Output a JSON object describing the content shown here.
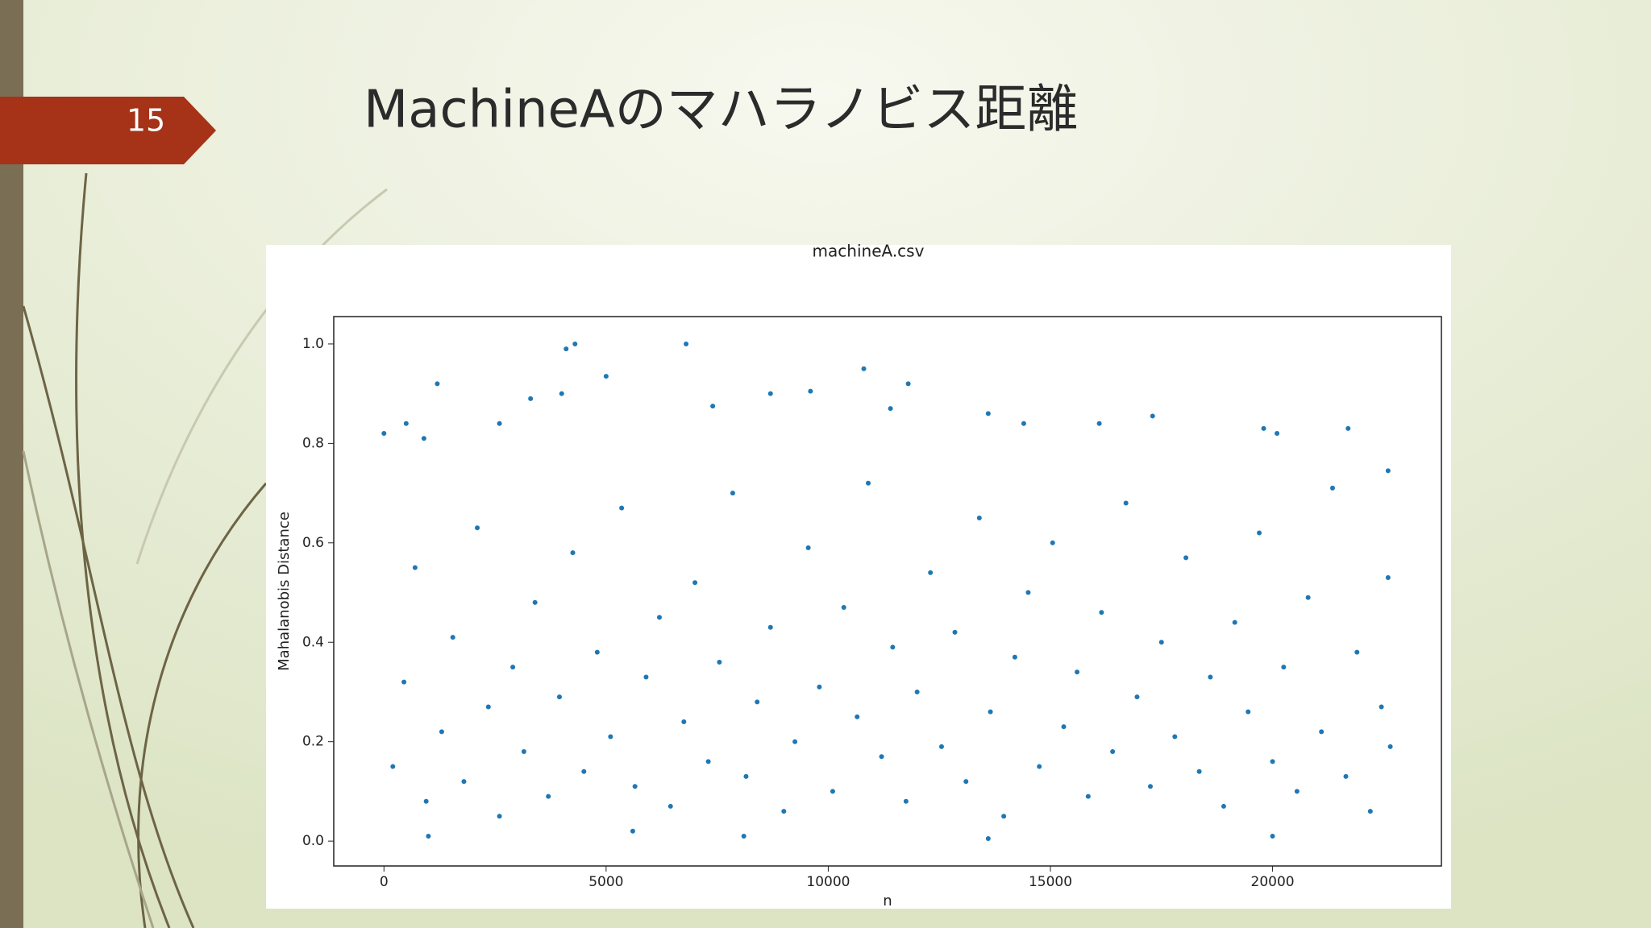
{
  "slide": {
    "number": 15,
    "title": "MachineAのマハラノビス距離"
  },
  "chart_data": {
    "type": "scatter",
    "title": "machineA.csv",
    "x_label": "n",
    "y_label": "Mahalanobis Distance",
    "color": "#1f77b4",
    "x": [
      4300,
      4100,
      6800,
      10800,
      5000,
      1200,
      9600,
      11800,
      4000,
      3300,
      8700,
      21700,
      13600,
      17300,
      14400,
      16100,
      19800,
      20100,
      2600,
      7400,
      11400,
      0,
      500,
      900,
      22600,
      13600,
      8100,
      1000,
      20000,
      5600,
      200,
      450,
      700,
      950,
      1300,
      1550,
      1800,
      2100,
      2350,
      2600,
      2900,
      3150,
      3400,
      3700,
      3950,
      4250,
      4500,
      4800,
      5100,
      5350,
      5650,
      5900,
      6200,
      6450,
      6750,
      7000,
      7300,
      7550,
      7850,
      8150,
      8400,
      8700,
      9000,
      9250,
      9550,
      9800,
      10100,
      10350,
      10650,
      10900,
      11200,
      11450,
      11750,
      12000,
      12300,
      12550,
      12850,
      13100,
      13400,
      13650,
      13950,
      14200,
      14500,
      14750,
      15050,
      15300,
      15600,
      15850,
      16150,
      16400,
      16700,
      16950,
      17250,
      17500,
      17800,
      18050,
      18350,
      18600,
      18900,
      19150,
      19450,
      19700,
      20000,
      20250,
      20550,
      20800,
      21100,
      21350,
      21650,
      21900,
      22200,
      22450,
      22650,
      22600
    ],
    "y": [
      1.0,
      0.99,
      1.0,
      0.95,
      0.935,
      0.92,
      0.905,
      0.92,
      0.9,
      0.89,
      0.9,
      0.83,
      0.86,
      0.855,
      0.84,
      0.84,
      0.83,
      0.82,
      0.84,
      0.875,
      0.87,
      0.82,
      0.84,
      0.81,
      0.745,
      0.005,
      0.01,
      0.01,
      0.01,
      0.02,
      0.15,
      0.32,
      0.55,
      0.08,
      0.22,
      0.41,
      0.12,
      0.63,
      0.27,
      0.05,
      0.35,
      0.18,
      0.48,
      0.09,
      0.29,
      0.58,
      0.14,
      0.38,
      0.21,
      0.67,
      0.11,
      0.33,
      0.45,
      0.07,
      0.24,
      0.52,
      0.16,
      0.36,
      0.7,
      0.13,
      0.28,
      0.43,
      0.06,
      0.2,
      0.59,
      0.31,
      0.1,
      0.47,
      0.25,
      0.72,
      0.17,
      0.39,
      0.08,
      0.3,
      0.54,
      0.19,
      0.42,
      0.12,
      0.65,
      0.26,
      0.05,
      0.37,
      0.5,
      0.15,
      0.6,
      0.23,
      0.34,
      0.09,
      0.46,
      0.18,
      0.68,
      0.29,
      0.11,
      0.4,
      0.21,
      0.57,
      0.14,
      0.33,
      0.07,
      0.44,
      0.26,
      0.62,
      0.16,
      0.35,
      0.1,
      0.49,
      0.22,
      0.71,
      0.13,
      0.38,
      0.06,
      0.27,
      0.19,
      0.53
    ],
    "xlim": [
      -1130,
      23800
    ],
    "ylim": [
      -0.05,
      1.055
    ],
    "xticks": [
      0,
      5000,
      10000,
      15000,
      20000
    ],
    "yticks": [
      {
        "value": 0,
        "label": "0.0"
      },
      {
        "value": 0.2,
        "label": "0.2"
      },
      {
        "value": 0.4,
        "label": "0.4"
      },
      {
        "value": 0.6,
        "label": "0.6"
      },
      {
        "value": 0.8,
        "label": "0.8"
      },
      {
        "value": 1.0,
        "label": "1.0"
      }
    ]
  }
}
